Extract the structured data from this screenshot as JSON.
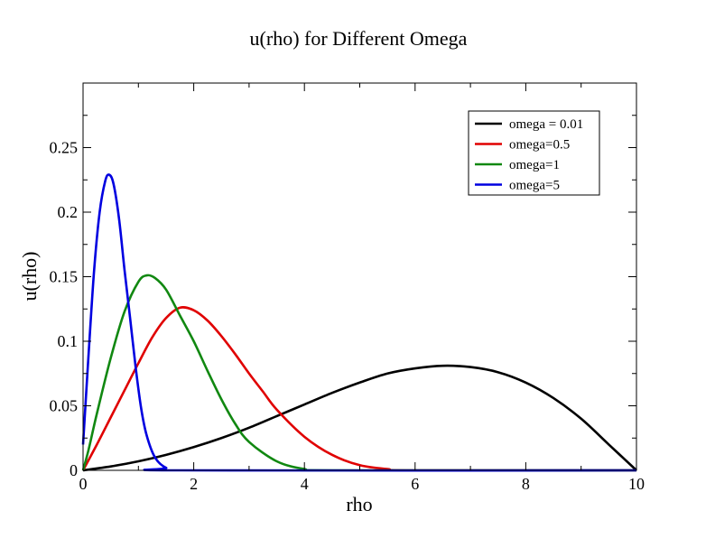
{
  "colors": {
    "omega_001": "#000000",
    "omega_05": "#e00000",
    "omega_1": "#118811",
    "omega_5": "#0000e0"
  },
  "chart_data": {
    "type": "line",
    "title": "u(rho) for Different Omega",
    "xlabel": "rho",
    "ylabel": "u(rho)",
    "xlim": [
      0,
      10
    ],
    "ylim": [
      0,
      0.3
    ],
    "grid": false,
    "legend_position": "top-right",
    "x_ticks": [
      "0",
      "2",
      "4",
      "6",
      "8",
      "10"
    ],
    "x_tick_values": [
      0,
      2,
      4,
      6,
      8,
      10
    ],
    "y_ticks": [
      "0",
      "0.05",
      "0.1",
      "0.15",
      "0.2",
      "0.25"
    ],
    "y_tick_values": [
      0,
      0.05,
      0.1,
      0.15,
      0.2,
      0.25
    ],
    "series": [
      {
        "name": "omega = 0.01",
        "color": "#000000",
        "points": [
          [
            0,
            0
          ],
          [
            0.5,
            0.003
          ],
          [
            1,
            0.007
          ],
          [
            1.5,
            0.012
          ],
          [
            2,
            0.018
          ],
          [
            2.5,
            0.025
          ],
          [
            3,
            0.033
          ],
          [
            3.5,
            0.042
          ],
          [
            4,
            0.051
          ],
          [
            4.5,
            0.06
          ],
          [
            5,
            0.068
          ],
          [
            5.5,
            0.075
          ],
          [
            6,
            0.079
          ],
          [
            6.5,
            0.081
          ],
          [
            7,
            0.08
          ],
          [
            7.5,
            0.076
          ],
          [
            8,
            0.068
          ],
          [
            8.5,
            0.056
          ],
          [
            9,
            0.04
          ],
          [
            9.5,
            0.02
          ],
          [
            10,
            0
          ]
        ]
      },
      {
        "name": "omega=0.5",
        "color": "#e00000",
        "points": [
          [
            0,
            0
          ],
          [
            0.25,
            0.02
          ],
          [
            0.5,
            0.041
          ],
          [
            0.75,
            0.062
          ],
          [
            1,
            0.083
          ],
          [
            1.25,
            0.103
          ],
          [
            1.5,
            0.118
          ],
          [
            1.75,
            0.126
          ],
          [
            2,
            0.124
          ],
          [
            2.25,
            0.116
          ],
          [
            2.5,
            0.104
          ],
          [
            2.75,
            0.09
          ],
          [
            3,
            0.075
          ],
          [
            3.25,
            0.061
          ],
          [
            3.5,
            0.047
          ],
          [
            4,
            0.026
          ],
          [
            4.5,
            0.012
          ],
          [
            5,
            0.004
          ],
          [
            5.5,
            0.001
          ],
          [
            6,
            0
          ],
          [
            10,
            0
          ]
        ]
      },
      {
        "name": "omega=1",
        "color": "#118811",
        "points": [
          [
            0,
            0
          ],
          [
            0.1,
            0.016
          ],
          [
            0.25,
            0.044
          ],
          [
            0.5,
            0.087
          ],
          [
            0.75,
            0.123
          ],
          [
            1,
            0.146
          ],
          [
            1.15,
            0.151
          ],
          [
            1.3,
            0.149
          ],
          [
            1.5,
            0.14
          ],
          [
            1.75,
            0.12
          ],
          [
            2,
            0.1
          ],
          [
            2.25,
            0.077
          ],
          [
            2.5,
            0.055
          ],
          [
            2.75,
            0.036
          ],
          [
            3,
            0.022
          ],
          [
            3.5,
            0.007
          ],
          [
            4,
            0.001
          ],
          [
            4.5,
            0
          ],
          [
            10,
            0
          ]
        ]
      },
      {
        "name": "omega=5",
        "color": "#0000e0",
        "points": [
          [
            0,
            0.02
          ],
          [
            0.05,
            0.055
          ],
          [
            0.1,
            0.09
          ],
          [
            0.2,
            0.155
          ],
          [
            0.3,
            0.2
          ],
          [
            0.4,
            0.224
          ],
          [
            0.47,
            0.229
          ],
          [
            0.55,
            0.222
          ],
          [
            0.65,
            0.195
          ],
          [
            0.75,
            0.155
          ],
          [
            0.85,
            0.118
          ],
          [
            0.95,
            0.08
          ],
          [
            1.05,
            0.048
          ],
          [
            1.15,
            0.027
          ],
          [
            1.3,
            0.01
          ],
          [
            1.5,
            0.002
          ],
          [
            1.8,
            0
          ],
          [
            10,
            0
          ]
        ]
      }
    ]
  }
}
